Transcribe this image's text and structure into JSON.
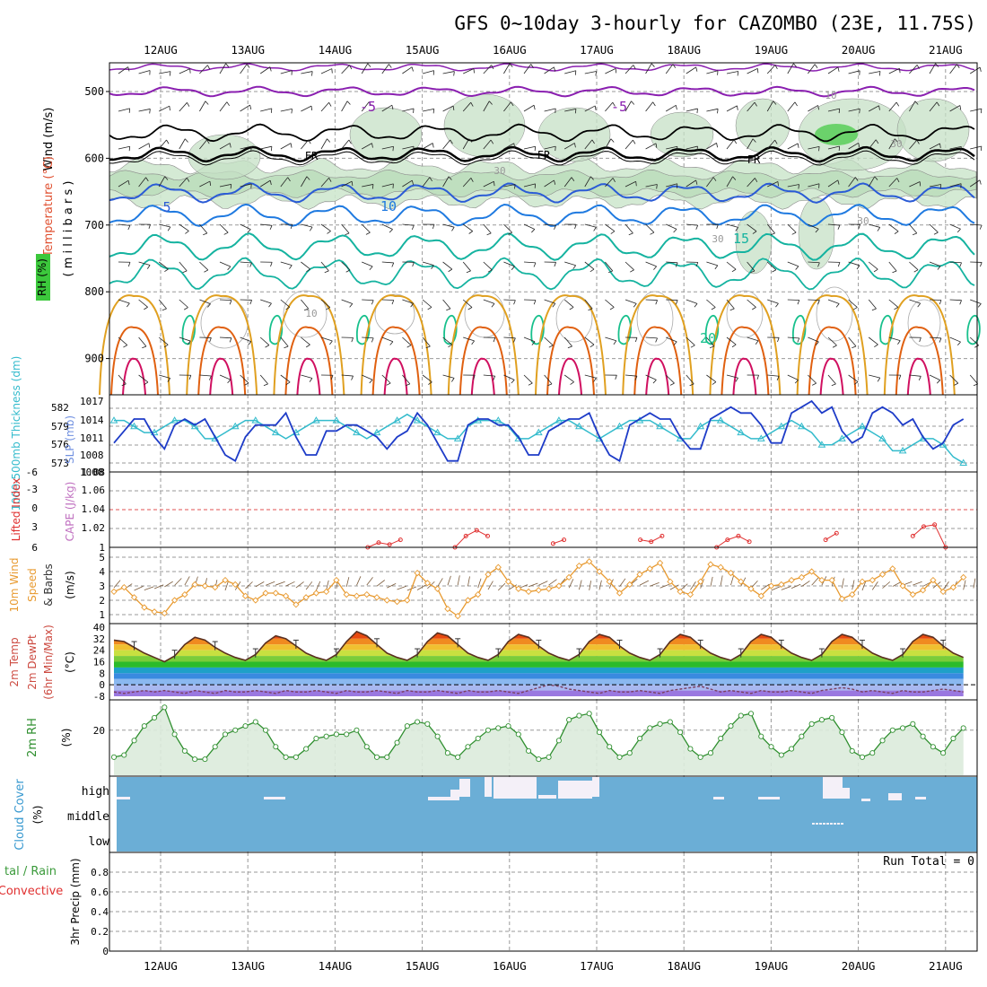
{
  "title": "GFS 0~10day 3-hourly for CAZOMBO (23E, 11.75S)",
  "date_labels": [
    "12AUG",
    "13AUG",
    "14AUG",
    "15AUG",
    "16AUG",
    "17AUG",
    "18AUG",
    "19AUG",
    "20AUG",
    "21AUG"
  ],
  "colors": {
    "freezing": "#000000",
    "minus5": "#8a1fb0",
    "plus5": "#2a5bd6",
    "plus10": "#1f7ae0",
    "plus15": "#15b3a0",
    "plus20": "#17c08c",
    "plus25": "#e0a020",
    "plus30": "#e06010",
    "plus35": "#d01060",
    "thickness": "#33bbcc",
    "slp": "#1e3cc8",
    "lifted": "#e03030",
    "wind10": "#e89a30",
    "rh": "#2f8f2f",
    "cloud": "#6baed6",
    "cloud_gap": "#f4f0f8"
  },
  "panels": {
    "upper": {
      "ylabel_wind": "Wind (m/s)",
      "ylabel_temp": "Temperature (°C)",
      "ylabel_rh": "RH (%)",
      "ylabel_mb": "( m i l l i b a r s )",
      "y_ticks": [
        "500",
        "600",
        "700",
        "800",
        "900"
      ],
      "contour_labels": {
        "m5a": "-5",
        "m5b": "-5",
        "fr": "FR",
        "p5": "5",
        "p10": "10",
        "p15": "15",
        "p20": "20",
        "rh10": "10",
        "rh30": "30"
      }
    },
    "slp": {
      "ylabel_thk": "1000-500mb Thickness (dm)",
      "ylabel_slp": "SLP (mb)",
      "thk_ticks": [
        "582",
        "579",
        "576",
        "573"
      ],
      "slp_ticks": [
        "1017",
        "1014",
        "1011",
        "1008",
        "1008"
      ]
    },
    "cape": {
      "ylabel_li": "Lifted Index",
      "ylabel_cape": "CAPE (J/kg)",
      "li_ticks": [
        "-6",
        "-3",
        "0",
        "3",
        "6"
      ],
      "cape_ticks": [
        "1.08",
        "1.06",
        "1.04",
        "1.02",
        "1"
      ]
    },
    "wind10": {
      "ylabel_a": "10m Wind",
      "ylabel_b": "Speed",
      "ylabel_c": "& Barbs",
      "ylabel_units": "(m/s)",
      "ticks": [
        "5",
        "4",
        "3",
        "2",
        "1"
      ]
    },
    "temp2m": {
      "ylabel_a": "2m Temp",
      "ylabel_b": "2m DewPt",
      "ylabel_c": "(6hr Min/Max)",
      "ylabel_units": "(°C)",
      "ticks": [
        "40",
        "32",
        "24",
        "16",
        "8",
        "0",
        "-8"
      ]
    },
    "rh2m": {
      "ylabel_a": "2m RH",
      "ylabel_units": "(%)",
      "ticks": [
        "20"
      ]
    },
    "cloud": {
      "ylabel_a": "Cloud Cover",
      "ylabel_units": "(%)",
      "levels": [
        "high",
        "middle",
        "low"
      ]
    },
    "precip": {
      "ylabel_a": "tal / Rain",
      "ylabel_b": "Convective",
      "ylabel_c": "3hr Precip (mm)",
      "ticks": [
        "0.8",
        "0.6",
        "0.4",
        "0.2",
        "0"
      ],
      "run_total": "Run Total = 0"
    }
  },
  "chart_data": [
    {
      "type": "line",
      "title": "1000-500mb Thickness (dm) / SLP (mb)",
      "x_start": "11AUG 12Z",
      "x_step_hours": 3,
      "series": [
        {
          "name": "SLP (mb)",
          "values": [
            1010,
            1012,
            1014,
            1014,
            1011,
            1009,
            1013,
            1014,
            1013,
            1014,
            1011,
            1008,
            1007,
            1011,
            1013,
            1013,
            1013,
            1015,
            1011,
            1008,
            1008,
            1012,
            1012,
            1013,
            1013,
            1012,
            1011,
            1009,
            1011,
            1012,
            1015,
            1013,
            1010,
            1007,
            1007,
            1013,
            1014,
            1014,
            1013,
            1013,
            1011,
            1008,
            1008,
            1012,
            1013,
            1014,
            1014,
            1015,
            1011,
            1008,
            1007,
            1013,
            1014,
            1015,
            1014,
            1014,
            1011,
            1009,
            1009,
            1014,
            1015,
            1016,
            1015,
            1015,
            1013,
            1010,
            1010,
            1015,
            1016,
            1017,
            1015,
            1016,
            1012,
            1010,
            1011,
            1015,
            1016,
            1015,
            1013,
            1014,
            1011,
            1009,
            1010,
            1013,
            1014
          ]
        },
        {
          "name": "1000-500mb Thickness (dm)",
          "values": [
            580,
            580,
            579,
            578,
            578,
            579,
            580,
            580,
            579,
            577,
            577,
            578,
            579,
            580,
            580,
            579,
            578,
            577,
            578,
            579,
            580,
            580,
            580,
            579,
            578,
            577,
            578,
            579,
            580,
            581,
            580,
            579,
            578,
            577,
            577,
            579,
            580,
            580,
            580,
            579,
            577,
            577,
            578,
            579,
            580,
            580,
            579,
            578,
            577,
            578,
            579,
            580,
            580,
            580,
            579,
            578,
            577,
            577,
            579,
            580,
            580,
            579,
            578,
            577,
            577,
            578,
            579,
            580,
            579,
            578,
            576,
            576,
            577,
            578,
            579,
            578,
            577,
            575,
            575,
            576,
            577,
            577,
            576,
            574,
            573
          ]
        }
      ]
    },
    {
      "type": "line",
      "title": "Lifted Index / CAPE (J/kg)",
      "series": [
        {
          "name": "CAPE (J/kg)",
          "points": [
            [
              "14AUG 09Z",
              1.0
            ],
            [
              "14AUG 12Z",
              1.005
            ],
            [
              "14AUG 15Z",
              1.003
            ],
            [
              "14AUG 18Z",
              1.008
            ],
            [
              "15AUG 09Z",
              1.0
            ],
            [
              "15AUG 12Z",
              1.012
            ],
            [
              "15AUG 15Z",
              1.018
            ],
            [
              "15AUG 18Z",
              1.012
            ],
            [
              "16AUG 12Z",
              1.004
            ],
            [
              "16AUG 15Z",
              1.008
            ],
            [
              "17AUG 12Z",
              1.008
            ],
            [
              "17AUG 15Z",
              1.006
            ],
            [
              "17AUG 18Z",
              1.012
            ],
            [
              "18AUG 09Z",
              1.0
            ],
            [
              "18AUG 12Z",
              1.008
            ],
            [
              "18AUG 15Z",
              1.012
            ],
            [
              "18AUG 18Z",
              1.006
            ],
            [
              "19AUG 15Z",
              1.008
            ],
            [
              "19AUG 18Z",
              1.015
            ],
            [
              "20AUG 15Z",
              1.012
            ],
            [
              "20AUG 18Z",
              1.022
            ],
            [
              "20AUG 21Z",
              1.024
            ],
            [
              "21AUG 00Z",
              1.0
            ]
          ]
        }
      ]
    },
    {
      "type": "line",
      "title": "10m Wind Speed & Barbs (m/s)",
      "x_start": "11AUG 12Z",
      "x_step_hours": 3,
      "series": [
        {
          "name": "10m Wind Speed",
          "values": [
            2.6,
            2.9,
            2.2,
            1.5,
            1.2,
            1.1,
            2.0,
            2.4,
            3.1,
            3.0,
            2.9,
            3.4,
            3.1,
            2.3,
            2.0,
            2.5,
            2.5,
            2.3,
            1.7,
            2.2,
            2.5,
            2.6,
            3.4,
            2.4,
            2.3,
            2.4,
            2.2,
            2.0,
            1.9,
            2.0,
            3.9,
            3.2,
            2.8,
            1.4,
            0.9,
            2.0,
            2.4,
            3.8,
            4.3,
            3.3,
            2.8,
            2.6,
            2.7,
            2.8,
            3.0,
            3.6,
            4.4,
            4.7,
            4.0,
            3.3,
            2.5,
            3.1,
            3.8,
            4.2,
            4.6,
            3.3,
            2.6,
            2.4,
            3.3,
            4.5,
            4.3,
            3.9,
            3.3,
            2.8,
            2.3,
            3.0,
            3.1,
            3.4,
            3.6,
            4.0,
            3.4,
            3.4,
            2.1,
            2.4,
            3.3,
            3.4,
            3.8,
            4.2,
            3.0,
            2.4,
            2.7,
            3.4,
            2.6,
            2.9,
            3.6
          ]
        }
      ]
    },
    {
      "type": "area",
      "title": "2m Temp / 2m DewPt (6hr Min/Max) (°C)",
      "x_start": "11AUG 12Z",
      "x_step_hours": 3,
      "series": [
        {
          "name": "2m Temp",
          "values": [
            31,
            30,
            26,
            22,
            19,
            16,
            20,
            28,
            33,
            31,
            26,
            22,
            19,
            17,
            21,
            29,
            34,
            32,
            27,
            22,
            19,
            17,
            21,
            30,
            37,
            34,
            28,
            22,
            19,
            17,
            21,
            30,
            36,
            34,
            28,
            22,
            19,
            17,
            21,
            30,
            35,
            33,
            27,
            22,
            19,
            17,
            21,
            30,
            35,
            33,
            27,
            22,
            19,
            17,
            21,
            30,
            35,
            33,
            27,
            22,
            19,
            17,
            21,
            30,
            35,
            33,
            27,
            22,
            19,
            17,
            21,
            30,
            35,
            33,
            27,
            22,
            19,
            17,
            21,
            30,
            35,
            33,
            27,
            22,
            19
          ]
        },
        {
          "name": "2m DewPt",
          "values": [
            -5,
            -6,
            -5,
            -4,
            -5,
            -4,
            -5,
            -6,
            -4,
            -5,
            -6,
            -4,
            -5,
            -5,
            -4,
            -5,
            -6,
            -4,
            -5,
            -5,
            -4,
            -5,
            -6,
            -4,
            -5,
            -5,
            -4,
            -5,
            -6,
            -4,
            -5,
            -5,
            -4,
            -5,
            -6,
            -4,
            -5,
            -5,
            -4,
            -5,
            -6,
            -4,
            -2,
            0,
            -1,
            -3,
            -4,
            -5,
            -6,
            -4,
            -5,
            -5,
            -4,
            -5,
            -6,
            -4,
            -3,
            -2,
            -1,
            -3,
            -5,
            -4,
            -5,
            -6,
            -4,
            -5,
            -5,
            -4,
            -5,
            -6,
            -4,
            -3,
            -2,
            -3,
            -5,
            -4,
            -5,
            -6,
            -4,
            -5,
            -5,
            -4,
            -3,
            -4,
            -5
          ]
        }
      ]
    },
    {
      "type": "area",
      "title": "2m RH (%)",
      "x_start": "11AUG 12Z",
      "x_step_hours": 3,
      "series": [
        {
          "name": "2m RH",
          "values": [
            7,
            8,
            15,
            22,
            26,
            31,
            18,
            10,
            6,
            6,
            12,
            18,
            20,
            22,
            24,
            20,
            12,
            7,
            7,
            11,
            16,
            17,
            18,
            18,
            20,
            12,
            7,
            7,
            14,
            22,
            24,
            23,
            17,
            9,
            7,
            12,
            16,
            20,
            21,
            22,
            18,
            10,
            6,
            7,
            15,
            25,
            27,
            28,
            19,
            12,
            7,
            9,
            16,
            21,
            23,
            24,
            19,
            11,
            7,
            9,
            16,
            22,
            27,
            28,
            17,
            12,
            8,
            11,
            17,
            23,
            25,
            26,
            19,
            10,
            7,
            9,
            15,
            20,
            21,
            23,
            17,
            12,
            9,
            16,
            21
          ]
        }
      ]
    },
    {
      "type": "bar",
      "title": "Cloud Cover (%)",
      "levels": [
        "low",
        "middle",
        "high"
      ],
      "note": "mostly full blue background; high-cloud gaps near 15AUG-17AUG and 19AUG-20AUG"
    },
    {
      "type": "bar",
      "title": "3hr Precip (mm)",
      "ylim": [
        0,
        1
      ],
      "values": [],
      "annotation": "Run Total = 0"
    }
  ]
}
